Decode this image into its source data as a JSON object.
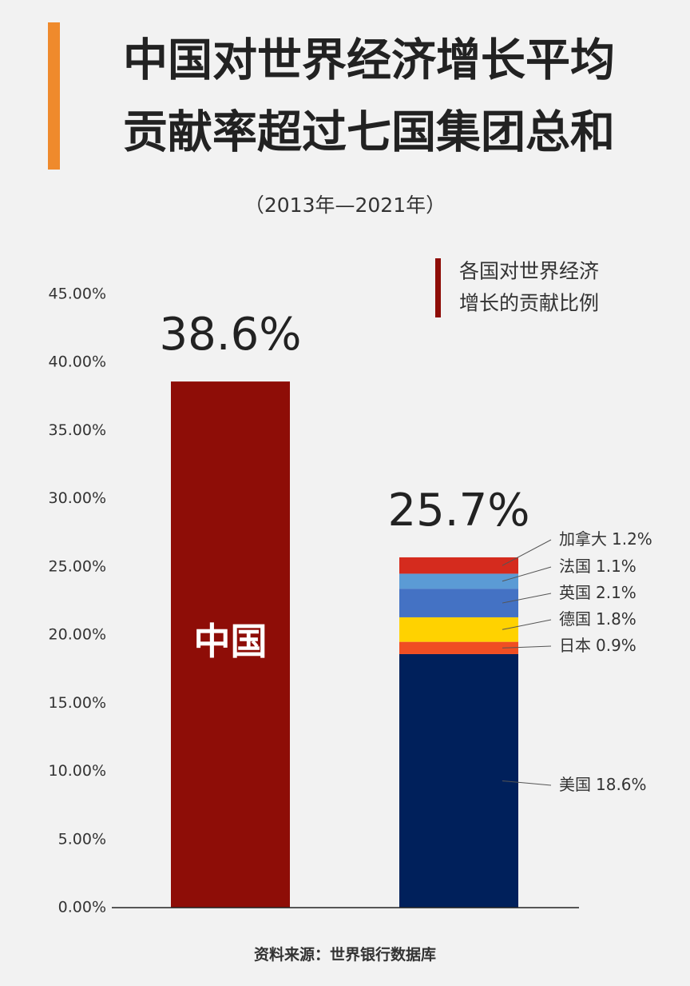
{
  "chart_data": {
    "type": "bar",
    "stacked": true,
    "title": [
      "中国对世界经济增长平均",
      "贡献率超过七国集团总和"
    ],
    "subtitle": "（2013年—2021年）",
    "legend_title": [
      "各国对世界经济",
      "增长的贡献比例"
    ],
    "legend_color": "#8e0d07",
    "source": "资料来源：世界银行数据库",
    "categories": [
      "中国",
      null
    ],
    "totals": [
      38.6,
      25.7
    ],
    "total_labels": [
      "38.6%",
      "25.7%"
    ],
    "series": [
      {
        "color": "#8e0d07",
        "values": [
          38.6,
          null
        ]
      },
      {
        "name": "美国",
        "color": "#00205b",
        "values": [
          null,
          18.6
        ],
        "value_labels": [
          null,
          "18.6%"
        ]
      },
      {
        "name": "日本",
        "color": "#f04e23",
        "values": [
          null,
          0.9
        ],
        "value_labels": [
          null,
          "0.9%"
        ]
      },
      {
        "name": "德国",
        "color": "#ffd200",
        "values": [
          null,
          1.8
        ],
        "value_labels": [
          null,
          "1.8%"
        ]
      },
      {
        "name": "英国",
        "color": "#4472c4",
        "values": [
          null,
          2.1
        ],
        "value_labels": [
          null,
          "2.1%"
        ]
      },
      {
        "name": "法国",
        "color": "#5b9bd5",
        "values": [
          null,
          1.1
        ],
        "value_labels": [
          null,
          "1.1%"
        ]
      },
      {
        "name": "加拿大",
        "color": "#d52b1e",
        "values": [
          null,
          1.2
        ],
        "value_labels": [
          null,
          "1.2%"
        ]
      }
    ],
    "ylim": [
      0,
      45
    ],
    "yticks": [
      {
        "value": 0,
        "label": "0.00%"
      },
      {
        "value": 5,
        "label": "5.00%"
      },
      {
        "value": 10,
        "label": "10.00%"
      },
      {
        "value": 15,
        "label": "15.00%"
      },
      {
        "value": 20,
        "label": "20.00%"
      },
      {
        "value": 25,
        "label": "25.00%"
      },
      {
        "value": 30,
        "label": "30.00%"
      },
      {
        "value": 35,
        "label": "35.00%"
      },
      {
        "value": 40,
        "label": "40.00%"
      },
      {
        "value": 45,
        "label": "45.00%"
      }
    ],
    "grid": false
  }
}
